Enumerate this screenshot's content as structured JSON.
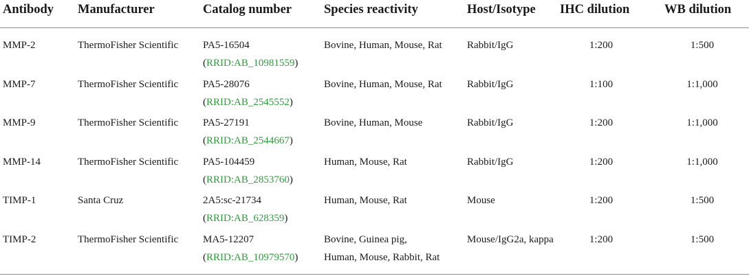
{
  "table": {
    "headers": [
      "Antibody",
      "Manufacturer",
      "Catalog number",
      "Species reactivity",
      "Host/Isotype",
      "IHC dilution",
      "WB dilution"
    ],
    "rows": [
      {
        "antibody": "MMP-2",
        "manufacturer": "ThermoFisher Scientific",
        "catalog": "PA5-16504",
        "rrid": "RRID:AB_10981559",
        "species": [
          "Bovine, Human, Mouse, Rat"
        ],
        "host": "Rabbit/IgG",
        "ihc": "1:200",
        "wb": "1:500"
      },
      {
        "antibody": "MMP-7",
        "manufacturer": "ThermoFisher Scientific",
        "catalog": "PA5-28076",
        "rrid": "RRID:AB_2545552",
        "species": [
          "Bovine, Human, Mouse, Rat"
        ],
        "host": "Rabbit/IgG",
        "ihc": "1:100",
        "wb": "1:1,000"
      },
      {
        "antibody": "MMP-9",
        "manufacturer": "ThermoFisher Scientific",
        "catalog": "PA5-27191",
        "rrid": "RRID:AB_2544667",
        "species": [
          "Bovine, Human, Mouse"
        ],
        "host": "Rabbit/IgG",
        "ihc": "1:200",
        "wb": "1:1,000"
      },
      {
        "antibody": "MMP-14",
        "manufacturer": "ThermoFisher Scientific",
        "catalog": "PA5-104459",
        "rrid": "RRID:AB_2853760",
        "species": [
          "Human, Mouse, Rat"
        ],
        "host": "Rabbit/IgG",
        "ihc": "1:200",
        "wb": "1:1,000"
      },
      {
        "antibody": "TIMP-1",
        "manufacturer": "Santa Cruz",
        "catalog": "2A5:sc-21734",
        "rrid": "RRID:AB_628359",
        "species": [
          "Human, Mouse, Rat"
        ],
        "host": "Mouse",
        "ihc": "1:200",
        "wb": "1:500"
      },
      {
        "antibody": "TIMP-2",
        "manufacturer": "ThermoFisher Scientific",
        "catalog": "MA5-12207",
        "rrid": "RRID:AB_10979570",
        "species": [
          "Bovine, Guinea pig,",
          "Human, Mouse, Rabbit, Rat"
        ],
        "host": "Mouse/IgG2a, kappa",
        "ihc": "1:200",
        "wb": "1:500"
      }
    ],
    "rrid_color": "#2f9c3c"
  }
}
